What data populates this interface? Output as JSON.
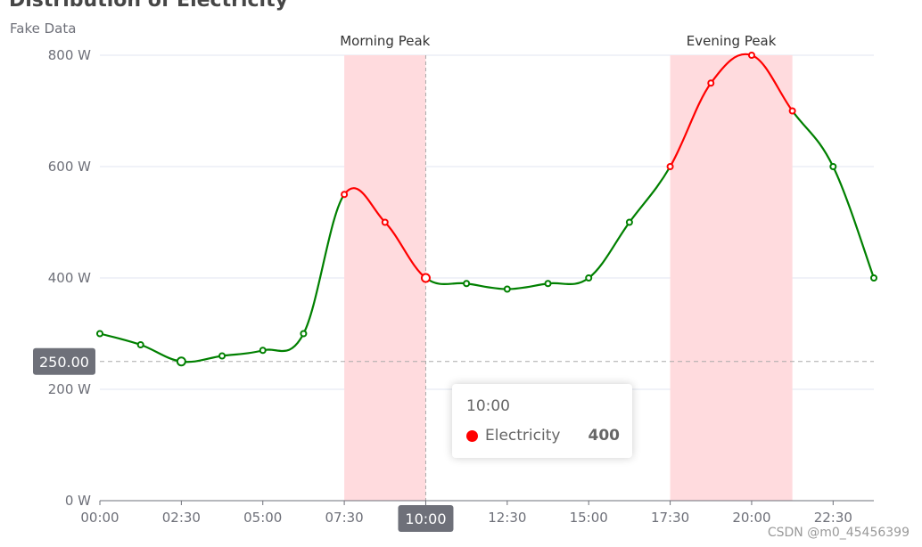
{
  "chart_data": {
    "type": "line",
    "title": "Distribution of Electricity",
    "subtitle": "Fake Data",
    "x": [
      "00:00",
      "01:15",
      "02:30",
      "03:45",
      "05:00",
      "06:15",
      "07:30",
      "08:45",
      "10:00",
      "11:15",
      "12:30",
      "13:45",
      "15:00",
      "16:15",
      "17:30",
      "18:45",
      "20:00",
      "21:15",
      "22:30",
      "23:45"
    ],
    "series": [
      {
        "name": "Electricity",
        "values": [
          300,
          280,
          250,
          260,
          270,
          300,
          550,
          500,
          400,
          390,
          380,
          390,
          400,
          500,
          600,
          750,
          800,
          700,
          600,
          400
        ]
      }
    ],
    "x_tick_labels": [
      "00:00",
      "02:30",
      "05:00",
      "07:30",
      "10:00",
      "12:30",
      "15:00",
      "17:30",
      "20:00",
      "22:30"
    ],
    "y_tick_labels": [
      "0 W",
      "200 W",
      "400 W",
      "600 W",
      "800 W"
    ],
    "ylim": [
      0,
      800
    ],
    "y_unit": "W",
    "mark_areas": [
      {
        "name": "Morning Peak",
        "from": "07:30",
        "to": "10:00"
      },
      {
        "name": "Evening Peak",
        "from": "17:30",
        "to": "21:15"
      }
    ],
    "mark_line": {
      "value": 250,
      "label": "250.00"
    },
    "axis_pointer": {
      "x": "10:00",
      "label": "10:00"
    },
    "colors": {
      "normal": "#008000",
      "peak": "#ff0000",
      "area": "#ffdbde",
      "axis": "#6e7079",
      "grid": "#e0e6f1",
      "pointer_label_bg": "#6e7079"
    }
  },
  "tooltip": {
    "time": "10:00",
    "series_name": "Electricity",
    "value": "400"
  },
  "watermark": "CSDN @m0_45456399"
}
